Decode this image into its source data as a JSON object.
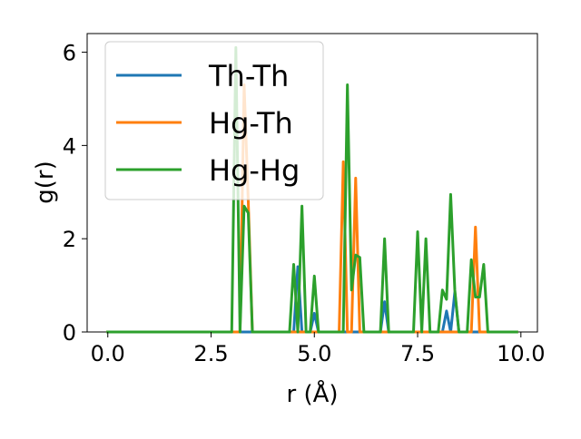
{
  "chart_data": {
    "type": "line",
    "xlabel": "r (Å)",
    "ylabel": "g(r)",
    "xlim": [
      -0.5,
      10.4
    ],
    "ylim": [
      0,
      6.4
    ],
    "xticks": [
      0.0,
      2.5,
      5.0,
      7.5,
      10.0
    ],
    "xtick_labels": [
      "0.0",
      "2.5",
      "5.0",
      "7.5",
      "10.0"
    ],
    "yticks": [
      0,
      2,
      4,
      6
    ],
    "ytick_labels": [
      "0",
      "2",
      "4",
      "6"
    ],
    "grid": false,
    "legend_position": "top-left",
    "series": [
      {
        "name": "Th-Th",
        "color": "#1f77b4",
        "x": [
          0.0,
          4.5,
          4.6,
          4.7,
          4.8,
          4.9,
          5.0,
          5.1,
          6.6,
          6.7,
          6.8,
          8.1,
          8.2,
          8.3,
          8.4,
          8.5,
          9.9
        ],
        "y": [
          0,
          0,
          1.4,
          0,
          0,
          0,
          0.4,
          0,
          0,
          0.65,
          0,
          0,
          0.45,
          0,
          0.85,
          0,
          0
        ]
      },
      {
        "name": "Hg-Th",
        "color": "#ff7f0e",
        "x": [
          0.0,
          3.2,
          3.3,
          3.4,
          3.5,
          5.6,
          5.7,
          5.8,
          5.9,
          6.0,
          6.1,
          6.2,
          8.7,
          8.8,
          8.9,
          9.0,
          9.9
        ],
        "y": [
          0,
          0,
          5.3,
          2.8,
          0,
          0,
          3.65,
          0,
          0,
          3.3,
          0,
          0,
          0,
          0,
          2.25,
          0,
          0
        ]
      },
      {
        "name": "Hg-Hg",
        "color": "#2ca02c",
        "x": [
          0.0,
          3.0,
          3.1,
          3.2,
          3.3,
          3.4,
          3.5,
          4.4,
          4.5,
          4.6,
          4.7,
          4.8,
          4.9,
          5.0,
          5.1,
          5.6,
          5.7,
          5.8,
          5.9,
          6.0,
          6.1,
          6.2,
          6.6,
          6.7,
          6.8,
          7.4,
          7.5,
          7.6,
          7.7,
          7.8,
          8.0,
          8.1,
          8.2,
          8.3,
          8.4,
          8.5,
          8.7,
          8.8,
          8.9,
          9.0,
          9.1,
          9.2,
          9.9
        ],
        "y": [
          0,
          0,
          6.1,
          0,
          2.7,
          2.55,
          0,
          0,
          1.45,
          0,
          2.7,
          0,
          0,
          1.2,
          0,
          0,
          0,
          5.3,
          0.9,
          1.65,
          1.6,
          0,
          0,
          2.0,
          0,
          0,
          2.15,
          0,
          2.0,
          0,
          0,
          0.9,
          0.7,
          2.95,
          0.9,
          0,
          0,
          1.55,
          0.75,
          0.75,
          1.45,
          0,
          0
        ]
      }
    ]
  }
}
